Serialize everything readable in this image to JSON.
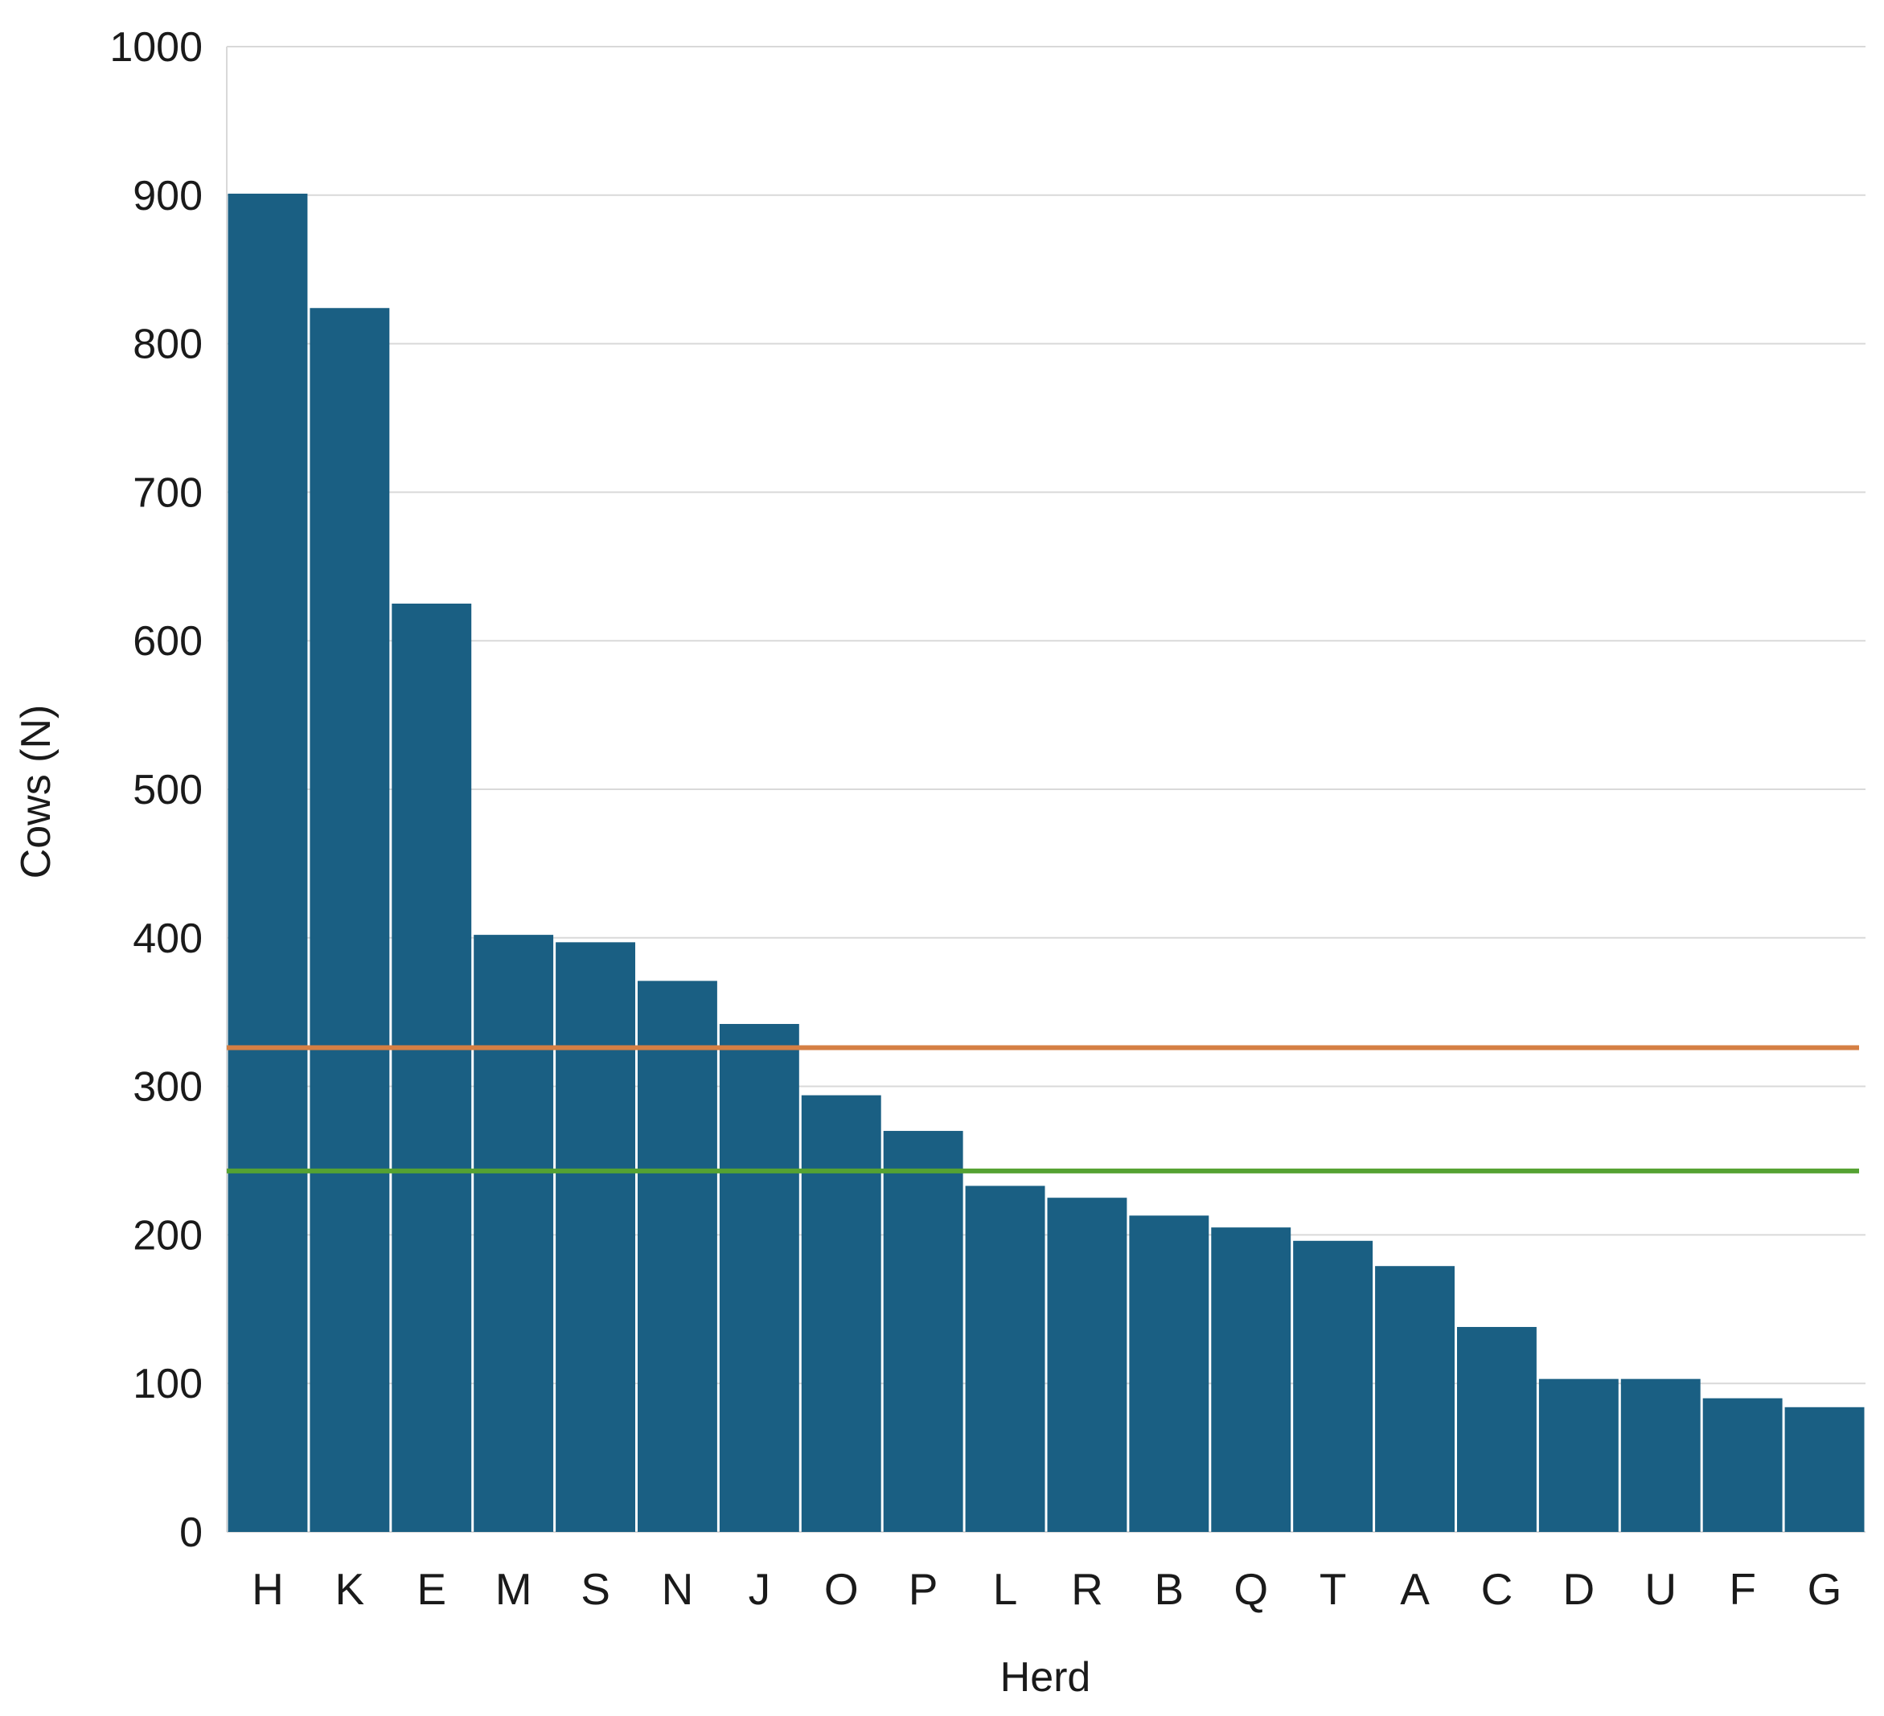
{
  "chart_data": {
    "type": "bar",
    "xlabel": "Herd",
    "ylabel": "Cows (N)",
    "ylim": [
      0,
      1000
    ],
    "yticks": [
      0,
      100,
      200,
      300,
      400,
      500,
      600,
      700,
      800,
      900,
      1000
    ],
    "grid": true,
    "legend": "none",
    "categories": [
      "H",
      "K",
      "E",
      "M",
      "S",
      "N",
      "J",
      "O",
      "P",
      "L",
      "R",
      "B",
      "Q",
      "T",
      "A",
      "C",
      "D",
      "U",
      "F",
      "G"
    ],
    "series": [
      {
        "values": [
          901,
          824,
          625,
          402,
          397,
          371,
          342,
          294,
          270,
          233,
          225,
          213,
          205,
          196,
          179,
          138,
          103,
          103,
          90,
          84
        ],
        "color": "#1a5f83"
      }
    ],
    "reference_lines": [
      {
        "value": 326,
        "color": "#d57f44"
      },
      {
        "value": 243,
        "color": "#55a232"
      }
    ],
    "colors": {
      "bar": "#1a5f83",
      "grid": "#d9d9d9",
      "bar_separator": "#ffffff"
    }
  }
}
